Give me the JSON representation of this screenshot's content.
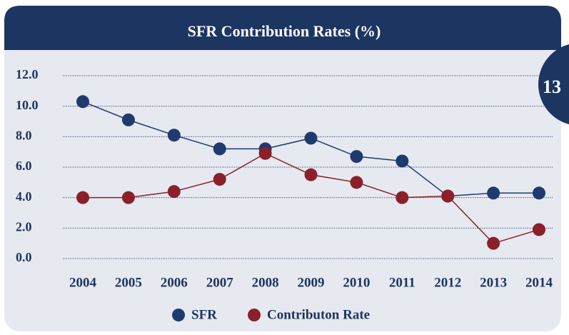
{
  "slide_number": "13",
  "chart_data": {
    "type": "line",
    "title": "SFR Contribution Rates (%)",
    "categories": [
      "2004",
      "2005",
      "2006",
      "2007",
      "2008",
      "2009",
      "2010",
      "2011",
      "2012",
      "2013",
      "2014"
    ],
    "series": [
      {
        "name": "SFR",
        "color": "#1f3a6e",
        "values": [
          10.3,
          9.1,
          8.1,
          7.2,
          7.2,
          7.9,
          6.7,
          6.4,
          4.1,
          4.3,
          4.3
        ]
      },
      {
        "name": "Contributon Rate",
        "color": "#8b1f2b",
        "values": [
          4.0,
          4.0,
          4.4,
          5.2,
          6.9,
          5.5,
          5.0,
          4.0,
          4.1,
          1.0,
          1.9
        ]
      }
    ],
    "ylim": [
      0,
      12
    ],
    "yticks": [
      {
        "value": 0,
        "label": "0.0"
      },
      {
        "value": 2,
        "label": "2.0"
      },
      {
        "value": 4,
        "label": "4.0"
      },
      {
        "value": 6,
        "label": "6.0"
      },
      {
        "value": 8,
        "label": "8.0"
      },
      {
        "value": 10,
        "label": "10.0"
      },
      {
        "value": 12,
        "label": "12.0"
      }
    ],
    "grid": true,
    "legend": "bottom"
  }
}
